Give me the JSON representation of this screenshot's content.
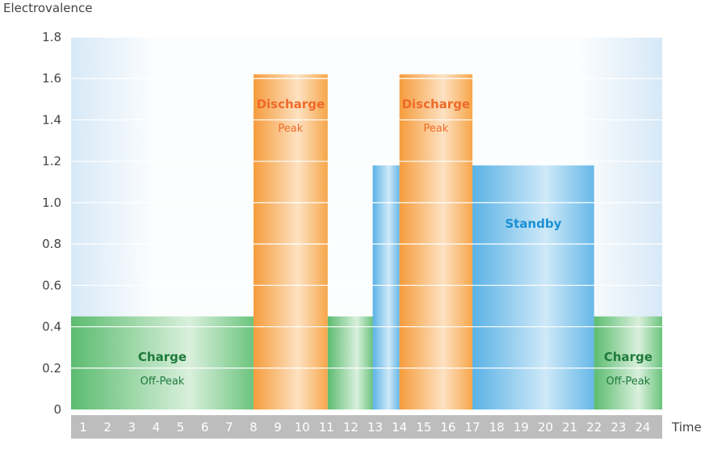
{
  "chart_data": {
    "type": "bar",
    "ylabel": "Electrovalence",
    "xlabel": "Time",
    "ylim": [
      0,
      1.8
    ],
    "yticks": [
      "0",
      "0.2",
      "0.4",
      "0.6",
      "0.8",
      "1.0",
      "1.2",
      "1.4",
      "1.6",
      "1.8"
    ],
    "xticks": [
      "1",
      "2",
      "3",
      "4",
      "5",
      "6",
      "7",
      "8",
      "9",
      "10",
      "11",
      "12",
      "13",
      "14",
      "15",
      "16",
      "17",
      "18",
      "19",
      "20",
      "21",
      "22",
      "23",
      "24"
    ],
    "grid": true,
    "colors": {
      "charge": "#66c27a",
      "discharge": "#f7a64a",
      "standby": "#5fb4e6",
      "charge_text": "#1e7a3a",
      "discharge_text": "#ef6a2a",
      "standby_text": "#1a8fd6",
      "axis_bar": "#bdbdbd"
    },
    "bars": [
      {
        "kind": "charge",
        "start": 0,
        "end": 7.5,
        "value": 0.45,
        "label": "Charge",
        "sublabel": "Off-Peak"
      },
      {
        "kind": "discharge",
        "start": 7.5,
        "end": 10.55,
        "value": 1.62,
        "label": "Discharge",
        "sublabel": "Peak"
      },
      {
        "kind": "charge",
        "start": 10.55,
        "end": 12.4,
        "value": 0.45,
        "label": "",
        "sublabel": ""
      },
      {
        "kind": "standby",
        "start": 12.4,
        "end": 13.5,
        "value": 1.18,
        "label": "",
        "sublabel": ""
      },
      {
        "kind": "discharge",
        "start": 13.5,
        "end": 16.5,
        "value": 1.62,
        "label": "Discharge",
        "sublabel": "Peak"
      },
      {
        "kind": "standby",
        "start": 16.5,
        "end": 21.5,
        "value": 1.18,
        "label": "Standby",
        "sublabel": ""
      },
      {
        "kind": "charge",
        "start": 21.5,
        "end": 24.3,
        "value": 0.45,
        "label": "Charge",
        "sublabel": "Off-Peak"
      }
    ]
  }
}
